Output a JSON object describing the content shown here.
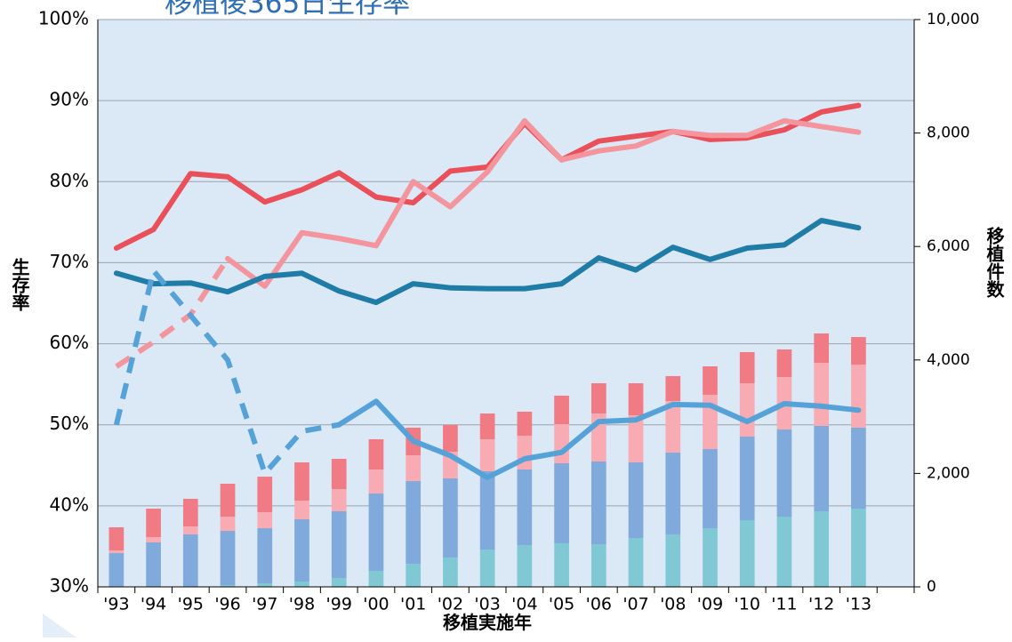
{
  "chart_data": {
    "type": "combo",
    "title": "移植後365日生存率",
    "y_label": "生存率",
    "y2_label": "移植件数",
    "x_label": "移植実施年",
    "categories": [
      "'93",
      "'94",
      "'95",
      "'96",
      "'97",
      "'98",
      "'99",
      "'00",
      "'01",
      "'02",
      "'03",
      "'04",
      "'05",
      "'06",
      "'07",
      "'08",
      "'09",
      "'10",
      "'11",
      "'12",
      "'13",
      null
    ],
    "ylim": [
      30,
      100
    ],
    "yticks": [
      {
        "value": 30,
        "label": "30%"
      },
      {
        "value": 40,
        "label": "40%"
      },
      {
        "value": 50,
        "label": "50%"
      },
      {
        "value": 60,
        "label": "60%"
      },
      {
        "value": 70,
        "label": "70%"
      },
      {
        "value": 80,
        "label": "80%"
      },
      {
        "value": 90,
        "label": "90%"
      },
      {
        "value": 100,
        "label": "100%"
      }
    ],
    "y2lim": [
      0,
      10000
    ],
    "y2ticks": [
      0,
      {
        "value": 2000,
        "label": "2,000"
      },
      {
        "value": 4000,
        "label": "4,000"
      },
      {
        "value": 6000,
        "label": "6,000"
      },
      {
        "value": 8000,
        "label": "8,000"
      },
      {
        "value": 10000,
        "label": "10,000"
      }
    ],
    "grid": true,
    "plot_background": "#dbe8f5",
    "bar_series": [
      {
        "color": "#80c8d3",
        "axis": "y2",
        "values": [
          0,
          0,
          0,
          30,
          63,
          94,
          157,
          282,
          408,
          517,
          658,
          737,
          768,
          752,
          862,
          925,
          1034,
          1175,
          1238,
          1332,
          1379,
          null
        ]
      },
      {
        "color": "#7faadb",
        "axis": "y2",
        "values": [
          595,
          784,
          925,
          957,
          971,
          1097,
          1175,
          1364,
          1457,
          1395,
          1380,
          1332,
          1411,
          1458,
          1332,
          1442,
          1395,
          1474,
          1536,
          1505,
          1427,
          null
        ]
      },
      {
        "color": "#f8abb3",
        "axis": "y2",
        "values": [
          48,
          94,
          141,
          251,
          282,
          329,
          392,
          423,
          455,
          470,
          564,
          596,
          689,
          846,
          831,
          909,
          957,
          940,
          925,
          1113,
          1112,
          null
        ]
      },
      {
        "color": "#f07b84",
        "axis": "y2",
        "values": [
          407,
          501,
          486,
          580,
          627,
          674,
          533,
          533,
          486,
          471,
          454,
          423,
          502,
          533,
          564,
          439,
          501,
          549,
          486,
          517,
          486,
          null
        ]
      }
    ],
    "line_series": [
      {
        "color": "#e9505a",
        "style": "solid",
        "values": [
          71.8,
          74.1,
          81.0,
          80.6,
          77.5,
          79.0,
          81.1,
          78.1,
          77.4,
          81.3,
          81.8,
          87.2,
          82.7,
          85.0,
          85.6,
          86.2,
          85.2,
          85.4,
          86.4,
          88.6,
          89.4,
          null
        ]
      },
      {
        "color": "#f4949c",
        "style": "dashed",
        "values": [
          57.2,
          60.2,
          63.6,
          70.5,
          null,
          null,
          null,
          null,
          null,
          null,
          null,
          null,
          null,
          null,
          null,
          null,
          null,
          null,
          null,
          null,
          null,
          null
        ]
      },
      {
        "color": "#f4949c",
        "style": "solid",
        "values": [
          null,
          null,
          null,
          70.5,
          67.1,
          73.7,
          73.0,
          72.1,
          80.0,
          76.9,
          81.2,
          87.5,
          82.7,
          83.8,
          84.4,
          86.2,
          85.7,
          85.7,
          87.5,
          86.8,
          86.1,
          null
        ]
      },
      {
        "color": "#1f7ca7",
        "style": "solid",
        "values": [
          68.7,
          67.4,
          67.5,
          66.4,
          68.3,
          68.7,
          66.5,
          65.1,
          67.4,
          66.9,
          66.8,
          66.8,
          67.4,
          70.6,
          69.1,
          71.9,
          70.4,
          71.8,
          72.2,
          75.2,
          74.3,
          null
        ]
      },
      {
        "color": "#55a2d9",
        "style": "dashed",
        "values": [
          50.0,
          69.0,
          63.5,
          58.0,
          44.0,
          49.2,
          50.0,
          null,
          null,
          null,
          null,
          null,
          null,
          null,
          null,
          null,
          null,
          null,
          null,
          null,
          null,
          null
        ]
      },
      {
        "color": "#55a2d9",
        "style": "solid",
        "values": [
          null,
          null,
          null,
          null,
          null,
          null,
          50.0,
          52.9,
          48.0,
          46.2,
          43.5,
          45.8,
          46.6,
          50.4,
          50.6,
          52.5,
          52.4,
          50.4,
          52.6,
          52.3,
          51.8,
          null
        ]
      }
    ]
  }
}
